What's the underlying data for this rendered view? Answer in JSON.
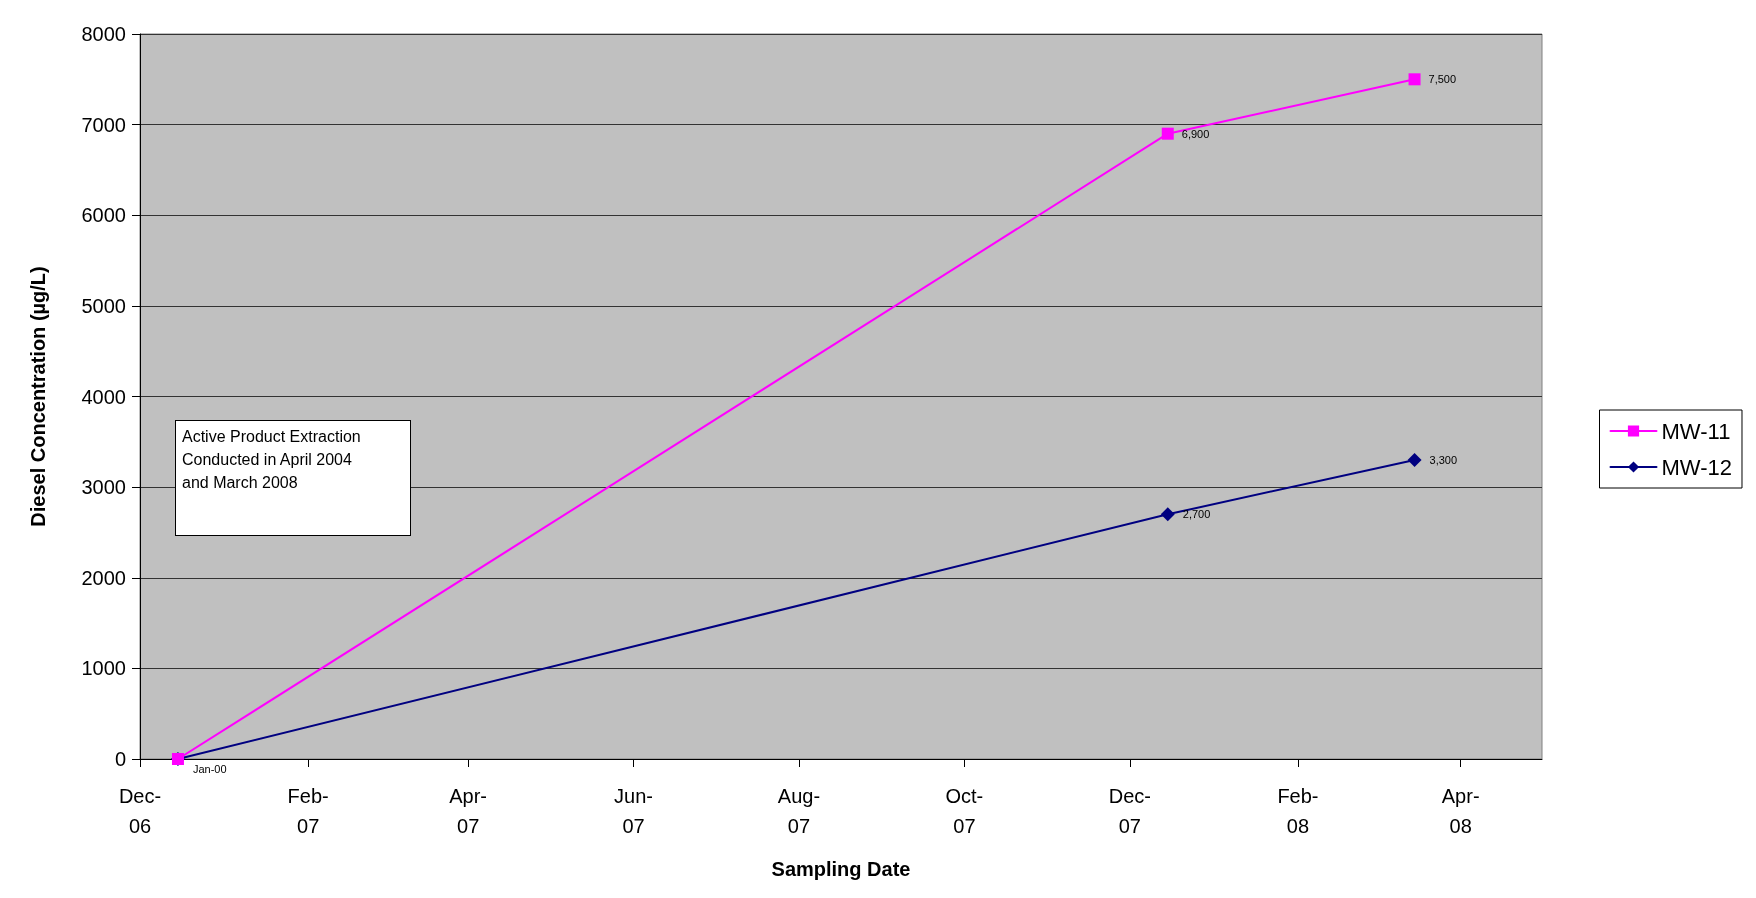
{
  "chart_data": {
    "type": "line",
    "xlabel": "Sampling Date",
    "ylabel": "Diesel Concentration (µg/L)",
    "x": [
      "2006-12-15",
      "2007-12-15",
      "2008-03-15"
    ],
    "series": [
      {
        "name": "MW-11",
        "color": "#ff00ff",
        "marker": "square",
        "values": [
          0,
          6900,
          7500
        ],
        "value_labels": [
          null,
          "6,900",
          "7,500"
        ]
      },
      {
        "name": "MW-12",
        "color": "#000080",
        "marker": "diamond",
        "values": [
          0,
          2700,
          3300
        ],
        "value_labels": [
          "Jan-00",
          "2,700",
          "3,300"
        ]
      }
    ],
    "xlim": [
      "2006-12-01",
      "2008-05-01"
    ],
    "xticks": [
      {
        "value": "2006-12-01",
        "label": "Dec-06"
      },
      {
        "value": "2007-02-01",
        "label": "Feb-07"
      },
      {
        "value": "2007-04-01",
        "label": "Apr-07"
      },
      {
        "value": "2007-06-01",
        "label": "Jun-07"
      },
      {
        "value": "2007-08-01",
        "label": "Aug-07"
      },
      {
        "value": "2007-10-01",
        "label": "Oct-07"
      },
      {
        "value": "2007-12-01",
        "label": "Dec-07"
      },
      {
        "value": "2008-02-01",
        "label": "Feb-08"
      },
      {
        "value": "2008-04-01",
        "label": "Apr-08"
      }
    ],
    "ylim": [
      0,
      8000
    ],
    "yticks": [
      0,
      1000,
      2000,
      3000,
      4000,
      5000,
      6000,
      7000,
      8000
    ],
    "grid": "y",
    "legend": "right",
    "line_style": "solid",
    "annotations": [
      "Active Product Extraction\nConducted in April 2004\nand March 2008"
    ]
  }
}
